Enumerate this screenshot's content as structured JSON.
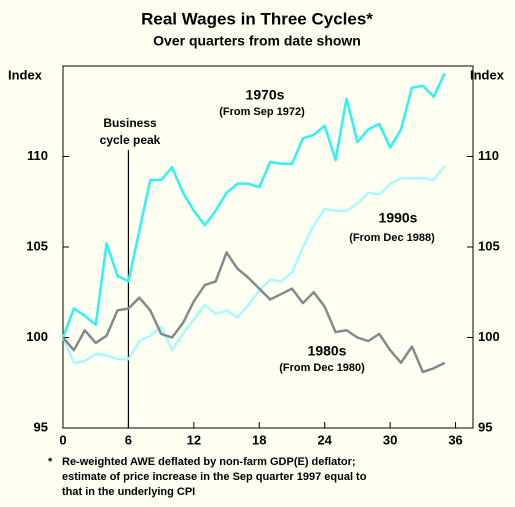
{
  "chart_data": {
    "type": "line",
    "title": "Real Wages in Three Cycles*",
    "subtitle": "Over quarters from date shown",
    "ylabel": "Index",
    "y2label": "Index",
    "x": [
      0,
      1,
      2,
      3,
      4,
      5,
      6,
      7,
      8,
      9,
      10,
      11,
      12,
      13,
      14,
      15,
      16,
      17,
      18,
      19,
      20,
      21,
      22,
      23,
      24,
      25,
      26,
      27,
      28,
      29,
      30,
      31,
      32,
      33,
      34,
      35
    ],
    "series": [
      {
        "name": "1970s",
        "color": "#2ff2f2",
        "values": [
          100,
          101.6,
          101.2,
          100.7,
          105.2,
          103.4,
          103.1,
          105.9,
          108.7,
          108.7,
          109.4,
          108,
          107,
          106.2,
          107,
          108,
          108.5,
          108.5,
          108.3,
          109.7,
          109.6,
          109.6,
          111,
          111.2,
          111.7,
          109.8,
          113.2,
          110.8,
          111.5,
          111.8,
          110.5,
          111.5,
          113.8,
          113.9,
          113.3,
          114.6
        ]
      },
      {
        "name": "1990s",
        "color": "#a6fbfb",
        "values": [
          100,
          98.6,
          98.7,
          99.1,
          99,
          98.8,
          98.8,
          99.8,
          100.1,
          100.6,
          99.3,
          100.2,
          101,
          101.8,
          101.3,
          101.5,
          101.1,
          101.8,
          102.6,
          103.2,
          103.1,
          103.6,
          105,
          106.2,
          107.1,
          107,
          107,
          107.4,
          108,
          107.9,
          108.5,
          108.8,
          108.8,
          108.8,
          108.7,
          109.5
        ]
      },
      {
        "name": "1980s",
        "color": "#7f8c8c",
        "values": [
          100,
          99.3,
          100.4,
          99.7,
          100.1,
          101.5,
          101.6,
          102.2,
          101.5,
          100.2,
          100,
          100.8,
          102,
          102.9,
          103.1,
          104.7,
          103.8,
          103.3,
          102.7,
          102.1,
          102.4,
          102.7,
          101.9,
          102.5,
          101.7,
          100.3,
          100.4,
          100,
          99.8,
          100.2,
          99.3,
          98.6,
          99.5,
          98.1,
          98.3,
          98.6
        ]
      }
    ],
    "series_notes": [
      "(From Sep 1972)",
      "(From Dec 1988)",
      "(From Dec 1980)"
    ],
    "vline": 6,
    "vline_label": [
      "Business",
      "cycle peak"
    ],
    "xlim": [
      0,
      37.6
    ],
    "xticks": [
      0,
      6,
      12,
      18,
      24,
      30,
      36
    ],
    "ylim": [
      95,
      115
    ],
    "yticks": [
      95,
      100,
      105,
      110
    ],
    "y2lim": [
      95,
      115
    ],
    "y2ticks": [
      95,
      100,
      105,
      110
    ],
    "note_mark": "*",
    "note": [
      "Re-weighted AWE deflated by non-farm GDP(E) deflator;",
      "estimate of price increase in the Sep quarter 1997 equal to",
      "that in the underlying CPI"
    ]
  }
}
